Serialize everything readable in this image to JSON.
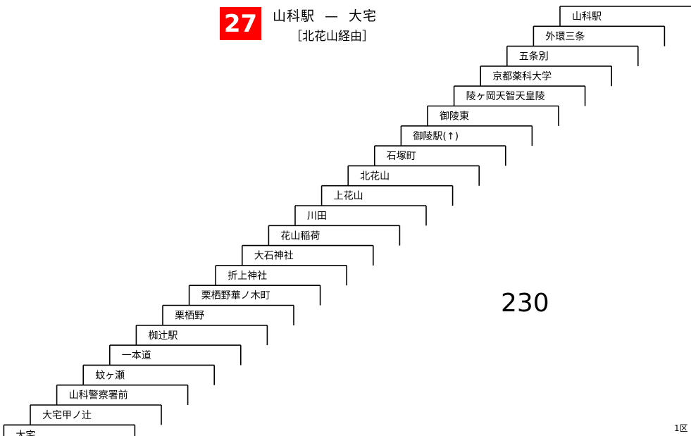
{
  "header": {
    "route_number": "27",
    "from": "山科駅",
    "separator": "—",
    "to": "大宅",
    "via": "［北花山経由］"
  },
  "stops": [
    "山科駅",
    "外環三条",
    "五条別",
    "京都薬科大学",
    "陵ヶ岡天智天皇陵",
    "御陵東",
    "御陵駅(↑)",
    "石塚町",
    "北花山",
    "上花山",
    "川田",
    "花山稲荷",
    "大石神社",
    "折上神社",
    "栗栖野華ノ木町",
    "栗栖野",
    "椥辻駅",
    "一本道",
    "蚊ヶ瀬",
    "山科警察署前",
    "大宅甲ノ辻",
    "大宅"
  ],
  "fare": {
    "value": "230"
  },
  "zone_note": "1区"
}
